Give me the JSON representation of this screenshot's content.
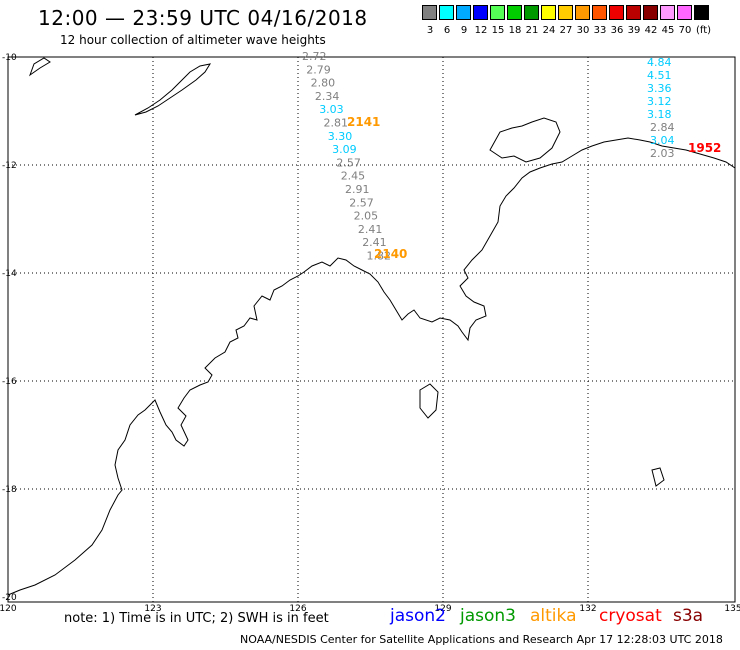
{
  "header": {
    "title": "12:00 — 23:59 UTC 04/16/2018",
    "subtitle": "12 hour collection of altimeter wave heights"
  },
  "colorbar": {
    "unit": "(ft)",
    "swatches": [
      {
        "label": "3",
        "color": "#808080"
      },
      {
        "label": "6",
        "color": "#00ffff"
      },
      {
        "label": "9",
        "color": "#00aaff"
      },
      {
        "label": "12",
        "color": "#0000ff"
      },
      {
        "label": "15",
        "color": "#55ff55"
      },
      {
        "label": "18",
        "color": "#00cc00"
      },
      {
        "label": "21",
        "color": "#009900"
      },
      {
        "label": "24",
        "color": "#ffff00"
      },
      {
        "label": "27",
        "color": "#ffcc00"
      },
      {
        "label": "30",
        "color": "#ff9900"
      },
      {
        "label": "33",
        "color": "#ff5500"
      },
      {
        "label": "36",
        "color": "#ee0000"
      },
      {
        "label": "39",
        "color": "#bb0000"
      },
      {
        "label": "42",
        "color": "#880000"
      },
      {
        "label": "45",
        "color": "#ff99ff"
      },
      {
        "label": "70",
        "color": "#ff66ff"
      },
      {
        "label": "",
        "color": "#000000"
      }
    ]
  },
  "map": {
    "lon_ticks": [
      "120",
      "123",
      "126",
      "129",
      "132",
      "135"
    ],
    "lat_ticks": [
      "-10",
      "-12",
      "-14",
      "-16",
      "-18",
      "-20"
    ]
  },
  "tracks": [
    {
      "time_label": "2141",
      "time_color": "#ff9900",
      "readings": [
        {
          "v": "2.72",
          "c": "#808080"
        },
        {
          "v": "2.79",
          "c": "#808080"
        },
        {
          "v": "2.80",
          "c": "#808080"
        },
        {
          "v": "2.34",
          "c": "#808080"
        },
        {
          "v": "3.03",
          "c": "#00ccff"
        },
        {
          "v": "2.81",
          "c": "#808080"
        },
        {
          "v": "3.30",
          "c": "#00ccff"
        },
        {
          "v": "3.09",
          "c": "#00ccff"
        },
        {
          "v": "2.57",
          "c": "#808080"
        },
        {
          "v": "2.45",
          "c": "#808080"
        },
        {
          "v": "2.91",
          "c": "#808080"
        },
        {
          "v": "2.57",
          "c": "#808080"
        },
        {
          "v": "2.05",
          "c": "#808080"
        },
        {
          "v": "2.41",
          "c": "#808080"
        },
        {
          "v": "2.41",
          "c": "#808080"
        },
        {
          "v": "1.82",
          "c": "#808080"
        }
      ],
      "time_label_2": "2140"
    },
    {
      "time_label": "1952",
      "time_color": "#ff0000",
      "readings": [
        {
          "v": "4.84",
          "c": "#00ccff"
        },
        {
          "v": "4.51",
          "c": "#00ccff"
        },
        {
          "v": "3.36",
          "c": "#00ccff"
        },
        {
          "v": "3.12",
          "c": "#00ccff"
        },
        {
          "v": "3.18",
          "c": "#00ccff"
        },
        {
          "v": "2.84",
          "c": "#808080"
        },
        {
          "v": "3.04",
          "c": "#00ccff"
        },
        {
          "v": "2.03",
          "c": "#808080"
        }
      ]
    }
  ],
  "footer": {
    "note": "note:  1) Time is in UTC;  2) SWH is in feet",
    "legend": [
      {
        "name": "jason2",
        "color": "#0000ff"
      },
      {
        "name": "jason3",
        "color": "#009900"
      },
      {
        "name": "altika",
        "color": "#ff9900"
      },
      {
        "name": "cryosat",
        "color": "#ff0000"
      },
      {
        "name": "s3a",
        "color": "#880000"
      }
    ],
    "credit": "NOAA/NESDIS Center for Satellite Applications and Research    Apr 17 12:28:03 UTC 2018"
  }
}
